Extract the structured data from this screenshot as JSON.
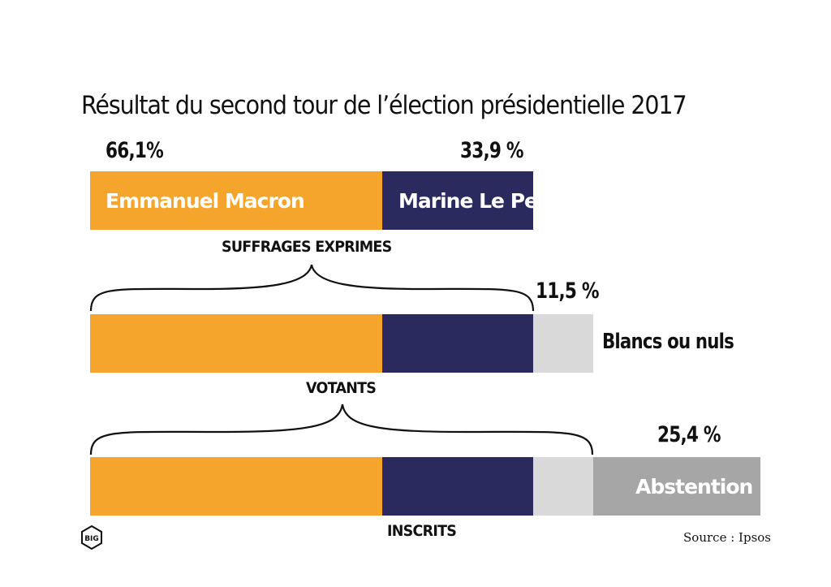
{
  "title": "Résultat du second tour de l’élection présidentielle 2017",
  "labels": {
    "macron_pct": "66,1%",
    "lepen_pct": "33,9 %",
    "blancs_pct": "11,5 %",
    "abstention_pct": "25,4 %",
    "macron_name": "Emmanuel Macron",
    "lepen_name": "Marine Le Pen",
    "blancs_name": "Blancs ou nuls",
    "abstention_name": "Abstention",
    "suffrages": "SUFFRAGES EXPRIMES",
    "votants": "VOTANTS",
    "inscrits": "INSCRITS"
  },
  "source": "Source : Ipsos",
  "logo_text": "BIG",
  "colors": {
    "macron": "#F5A52B",
    "lepen": "#2B2A5E",
    "blancs": "#D9D9D9",
    "abstention": "#A6A6A6"
  },
  "chart_data": {
    "type": "bar",
    "title": "Résultat du second tour de l’élection présidentielle 2017",
    "orientation": "horizontal-stacked",
    "categories": [
      "SUFFRAGES EXPRIMES",
      "VOTANTS",
      "INSCRITS"
    ],
    "series": [
      {
        "name": "Emmanuel Macron",
        "values": [
          66.1,
          null,
          null
        ]
      },
      {
        "name": "Marine Le Pen",
        "values": [
          33.9,
          null,
          null
        ]
      },
      {
        "name": "Blancs ou nuls",
        "values": [
          null,
          11.5,
          null
        ]
      },
      {
        "name": "Abstention",
        "values": [
          null,
          null,
          25.4
        ]
      }
    ],
    "annotations": [
      "66,1%",
      "33,9 %",
      "11,5 %",
      "25,4 %"
    ]
  }
}
